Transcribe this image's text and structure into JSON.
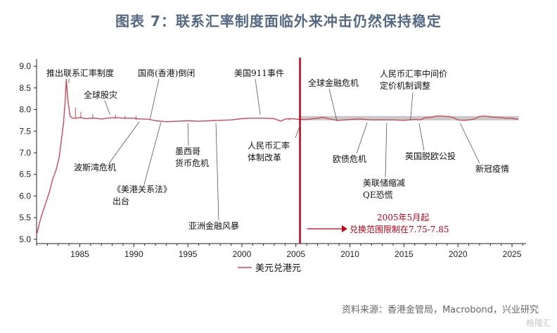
{
  "title": "图表 7：联系汇率制度面临外来冲击仍然保持稳定",
  "source": "资料来源：香港金管局，Macrobond，兴业研究",
  "watermark": "格隆汇",
  "chart_data": {
    "type": "line",
    "xlim": [
      1981.0,
      2026.3
    ],
    "ylim": [
      4.9,
      9.1
    ],
    "yticks": [
      5.0,
      5.5,
      6.0,
      6.5,
      7.0,
      7.5,
      8.0,
      8.5,
      9.0
    ],
    "ytick_labels": [
      "5.0",
      "5.5",
      "6.0",
      "6.5",
      "7.0",
      "7.5",
      "8.0",
      "8.5",
      "9.0"
    ],
    "xticks": [
      1985,
      1990,
      1995,
      2000,
      2005,
      2010,
      2015,
      2020,
      2025
    ],
    "xtick_labels": [
      "1985",
      "1990",
      "1995",
      "2000",
      "2005",
      "2010",
      "2015",
      "2020",
      "2025"
    ],
    "grid": false,
    "legend_position": "bottom-left",
    "colors": {
      "series": "#cc4a5a",
      "band": "#c9c9c9",
      "divider": "#c0001a",
      "annotation_red": "#c0001a"
    },
    "band": {
      "x_from": 2005.38,
      "x_to": 2025.6,
      "y_from": 7.75,
      "y_to": 7.85
    },
    "divider_x": 2005.38,
    "series": [
      {
        "name": "美元兑港元",
        "x": [
          1981.0,
          1981.4,
          1981.8,
          1982.2,
          1982.5,
          1982.8,
          1983.1,
          1983.3,
          1983.5,
          1983.65,
          1983.75,
          1983.9,
          1984.1,
          1984.3,
          1984.5,
          1984.8,
          1985.0,
          1985.3,
          1985.6,
          1986.0,
          1986.5,
          1987.0,
          1987.5,
          1988.0,
          1988.5,
          1989.0,
          1989.5,
          1990.0,
          1990.5,
          1991.0,
          1991.5,
          1992.0,
          1993.0,
          1994.0,
          1995.0,
          1996.0,
          1997.0,
          1998.0,
          1999.0,
          2000.0,
          2001.0,
          2002.0,
          2003.0,
          2003.6,
          2004.0,
          2004.5,
          2005.0,
          2005.38,
          2006.0,
          2007.0,
          2007.5,
          2008.0,
          2008.8,
          2009.0,
          2010.0,
          2011.0,
          2012.0,
          2013.0,
          2014.0,
          2015.0,
          2016.0,
          2016.5,
          2017.0,
          2017.5,
          2018.0,
          2018.5,
          2019.0,
          2019.5,
          2020.0,
          2020.5,
          2021.0,
          2021.5,
          2022.0,
          2022.5,
          2023.0,
          2023.5,
          2024.0,
          2024.5,
          2025.0,
          2025.3,
          2025.6
        ],
        "y": [
          5.1,
          5.5,
          5.8,
          6.1,
          6.4,
          6.6,
          6.9,
          7.3,
          7.7,
          8.2,
          8.7,
          8.2,
          7.85,
          7.8,
          7.8,
          7.8,
          7.82,
          7.8,
          7.79,
          7.8,
          7.8,
          7.78,
          7.8,
          7.81,
          7.81,
          7.8,
          7.8,
          7.8,
          7.78,
          7.78,
          7.77,
          7.74,
          7.72,
          7.73,
          7.74,
          7.73,
          7.74,
          7.75,
          7.76,
          7.79,
          7.8,
          7.8,
          7.79,
          7.73,
          7.78,
          7.79,
          7.78,
          7.77,
          7.77,
          7.8,
          7.82,
          7.79,
          7.75,
          7.75,
          7.77,
          7.78,
          7.76,
          7.76,
          7.76,
          7.75,
          7.77,
          7.76,
          7.81,
          7.82,
          7.85,
          7.85,
          7.84,
          7.82,
          7.76,
          7.75,
          7.76,
          7.78,
          7.84,
          7.85,
          7.83,
          7.82,
          7.81,
          7.8,
          7.8,
          7.78,
          7.78
        ]
      }
    ],
    "annotations": [
      {
        "text": "推出联系汇率制度",
        "x": 1983.8,
        "y": 8.55,
        "lines": [
          "推出联系汇率制度"
        ]
      },
      {
        "text": "全球股灾",
        "x": 1987.8,
        "y": 7.85,
        "lines": [
          "全球股灾"
        ]
      },
      {
        "text": "国商(香港)倒闭",
        "x": 1991.5,
        "y": 7.78,
        "lines": [
          "国商(香港)倒闭"
        ]
      },
      {
        "text": "美国911事件",
        "x": 2001.7,
        "y": 7.8,
        "lines": [
          "美国911事件"
        ]
      },
      {
        "text": "波斯湾危机",
        "x": 1990.5,
        "y": 7.8,
        "lines": [
          "波斯湾危机"
        ]
      },
      {
        "text": "《美港关系法》出台",
        "x": 1992.5,
        "y": 7.75,
        "lines": [
          "《美港关系法》",
          "出台"
        ]
      },
      {
        "text": "墨西哥货币危机",
        "x": 1995.0,
        "y": 7.74,
        "lines": [
          "墨西哥",
          "货币危机"
        ]
      },
      {
        "text": "亚洲金融风暴",
        "x": 1997.6,
        "y": 7.74,
        "lines": [
          "亚洲金融风暴"
        ]
      },
      {
        "text": "人民币汇率体制改革",
        "x": 2005.38,
        "y": 7.78,
        "lines": [
          "人民币汇率",
          "体制改革"
        ]
      },
      {
        "text": "全球金融危机",
        "x": 2008.8,
        "y": 7.76,
        "lines": [
          "全球金融危机"
        ]
      },
      {
        "text": "人民币汇率中间价定价机制调整",
        "x": 2015.6,
        "y": 7.78,
        "lines": [
          "人民币汇率中间价",
          "定价机制调整"
        ]
      },
      {
        "text": "欧债危机",
        "x": 2011.6,
        "y": 7.77,
        "lines": [
          "欧债危机"
        ]
      },
      {
        "text": "美联储缩减QE恐慌",
        "x": 2013.4,
        "y": 7.76,
        "lines": [
          "美联储缩减",
          "QE恐慌"
        ]
      },
      {
        "text": "英国脱欧公投",
        "x": 2016.4,
        "y": 7.76,
        "lines": [
          "英国脱欧公投"
        ]
      },
      {
        "text": "新冠疫情",
        "x": 2020.2,
        "y": 7.76,
        "lines": [
          "新冠疫情"
        ]
      }
    ],
    "red_note": [
      "2005年5月起",
      "兑换范围限制在7.75-7.85"
    ]
  }
}
